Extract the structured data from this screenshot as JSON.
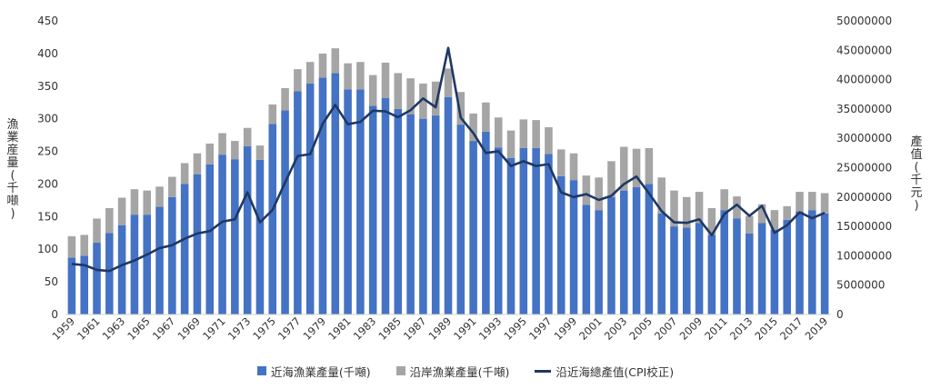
{
  "chart_data": {
    "type": "bar",
    "title": "",
    "stacked": true,
    "categories": [
      "1959",
      "1960",
      "1961",
      "1962",
      "1963",
      "1964",
      "1965",
      "1966",
      "1967",
      "1968",
      "1969",
      "1970",
      "1971",
      "1972",
      "1973",
      "1974",
      "1975",
      "1976",
      "1977",
      "1978",
      "1979",
      "1980",
      "1981",
      "1982",
      "1983",
      "1984",
      "1985",
      "1986",
      "1987",
      "1988",
      "1989",
      "1990",
      "1991",
      "1992",
      "1993",
      "1994",
      "1995",
      "1996",
      "1997",
      "1998",
      "1999",
      "2000",
      "2001",
      "2002",
      "2003",
      "2004",
      "2005",
      "2006",
      "2007",
      "2008",
      "2009",
      "2010",
      "2011",
      "2012",
      "2013",
      "2014",
      "2015",
      "2016",
      "2017",
      "2018",
      "2019"
    ],
    "x_tick_labels": [
      "1959",
      "1961",
      "1963",
      "1965",
      "1967",
      "1969",
      "1971",
      "1973",
      "1975",
      "1977",
      "1979",
      "1981",
      "1983",
      "1985",
      "1987",
      "1989",
      "1991",
      "1993",
      "1995",
      "1997",
      "1999",
      "2001",
      "2003",
      "2005",
      "2007",
      "2009",
      "2011",
      "2013",
      "2015",
      "2017",
      "2019"
    ],
    "y_left": {
      "label": "漁業産量(千噸)",
      "min": 0,
      "max": 450,
      "ticks": [
        0,
        50,
        100,
        150,
        200,
        250,
        300,
        350,
        400,
        450
      ]
    },
    "y_right": {
      "label": "產值(千元)",
      "min": 0,
      "max": 50000000,
      "ticks": [
        0,
        5000000,
        10000000,
        15000000,
        20000000,
        25000000,
        30000000,
        35000000,
        40000000,
        45000000,
        50000000
      ]
    },
    "grid": false,
    "legend_position": "bottom",
    "colors": {
      "offshore": "#4472c4",
      "coastal": "#a5a5a5",
      "value_line": "#1f3864"
    },
    "series": [
      {
        "name": "近海漁業產量(千噸)",
        "axis": "left",
        "type": "bar",
        "stack": "total",
        "values": [
          87,
          90,
          110,
          125,
          137,
          153,
          153,
          165,
          180,
          200,
          215,
          230,
          245,
          238,
          258,
          237,
          292,
          313,
          342,
          354,
          363,
          370,
          345,
          345,
          320,
          332,
          315,
          307,
          300,
          305,
          333,
          291,
          266,
          280,
          256,
          240,
          255,
          255,
          246,
          212,
          206,
          168,
          160,
          180,
          190,
          195,
          200,
          155,
          135,
          133,
          140,
          122,
          160,
          147,
          124,
          140,
          130,
          145,
          158,
          160,
          155
        ]
      },
      {
        "name": "沿岸漁業產量(千噸)",
        "axis": "left",
        "type": "bar",
        "stack": "total",
        "values": [
          33,
          32,
          37,
          38,
          42,
          39,
          37,
          31,
          31,
          32,
          32,
          32,
          33,
          28,
          28,
          22,
          30,
          34,
          34,
          33,
          37,
          38,
          40,
          42,
          47,
          54,
          55,
          55,
          54,
          52,
          44,
          50,
          42,
          45,
          46,
          42,
          44,
          43,
          41,
          41,
          41,
          45,
          50,
          55,
          67,
          59,
          55,
          55,
          55,
          47,
          48,
          41,
          32,
          34,
          27,
          29,
          30,
          21,
          30,
          28,
          31
        ]
      },
      {
        "name": "沿近海總產值(CPI校正)",
        "axis": "right",
        "type": "line",
        "values": [
          8600000,
          8400000,
          7600000,
          7400000,
          8400000,
          9200000,
          10200000,
          11300000,
          11800000,
          12900000,
          13800000,
          14200000,
          15800000,
          16200000,
          20800000,
          15700000,
          17800000,
          22500000,
          27000000,
          27300000,
          32500000,
          35700000,
          32400000,
          32800000,
          34700000,
          34600000,
          33600000,
          34800000,
          36800000,
          35300000,
          45400000,
          33500000,
          30900000,
          27500000,
          27800000,
          25300000,
          26100000,
          25300000,
          25600000,
          20800000,
          20000000,
          20500000,
          19500000,
          20200000,
          22200000,
          23500000,
          20600000,
          17600000,
          15700000,
          15600000,
          16200000,
          13500000,
          17100000,
          18700000,
          16800000,
          18500000,
          13900000,
          15200000,
          17400000,
          16400000,
          17300000
        ]
      }
    ]
  }
}
